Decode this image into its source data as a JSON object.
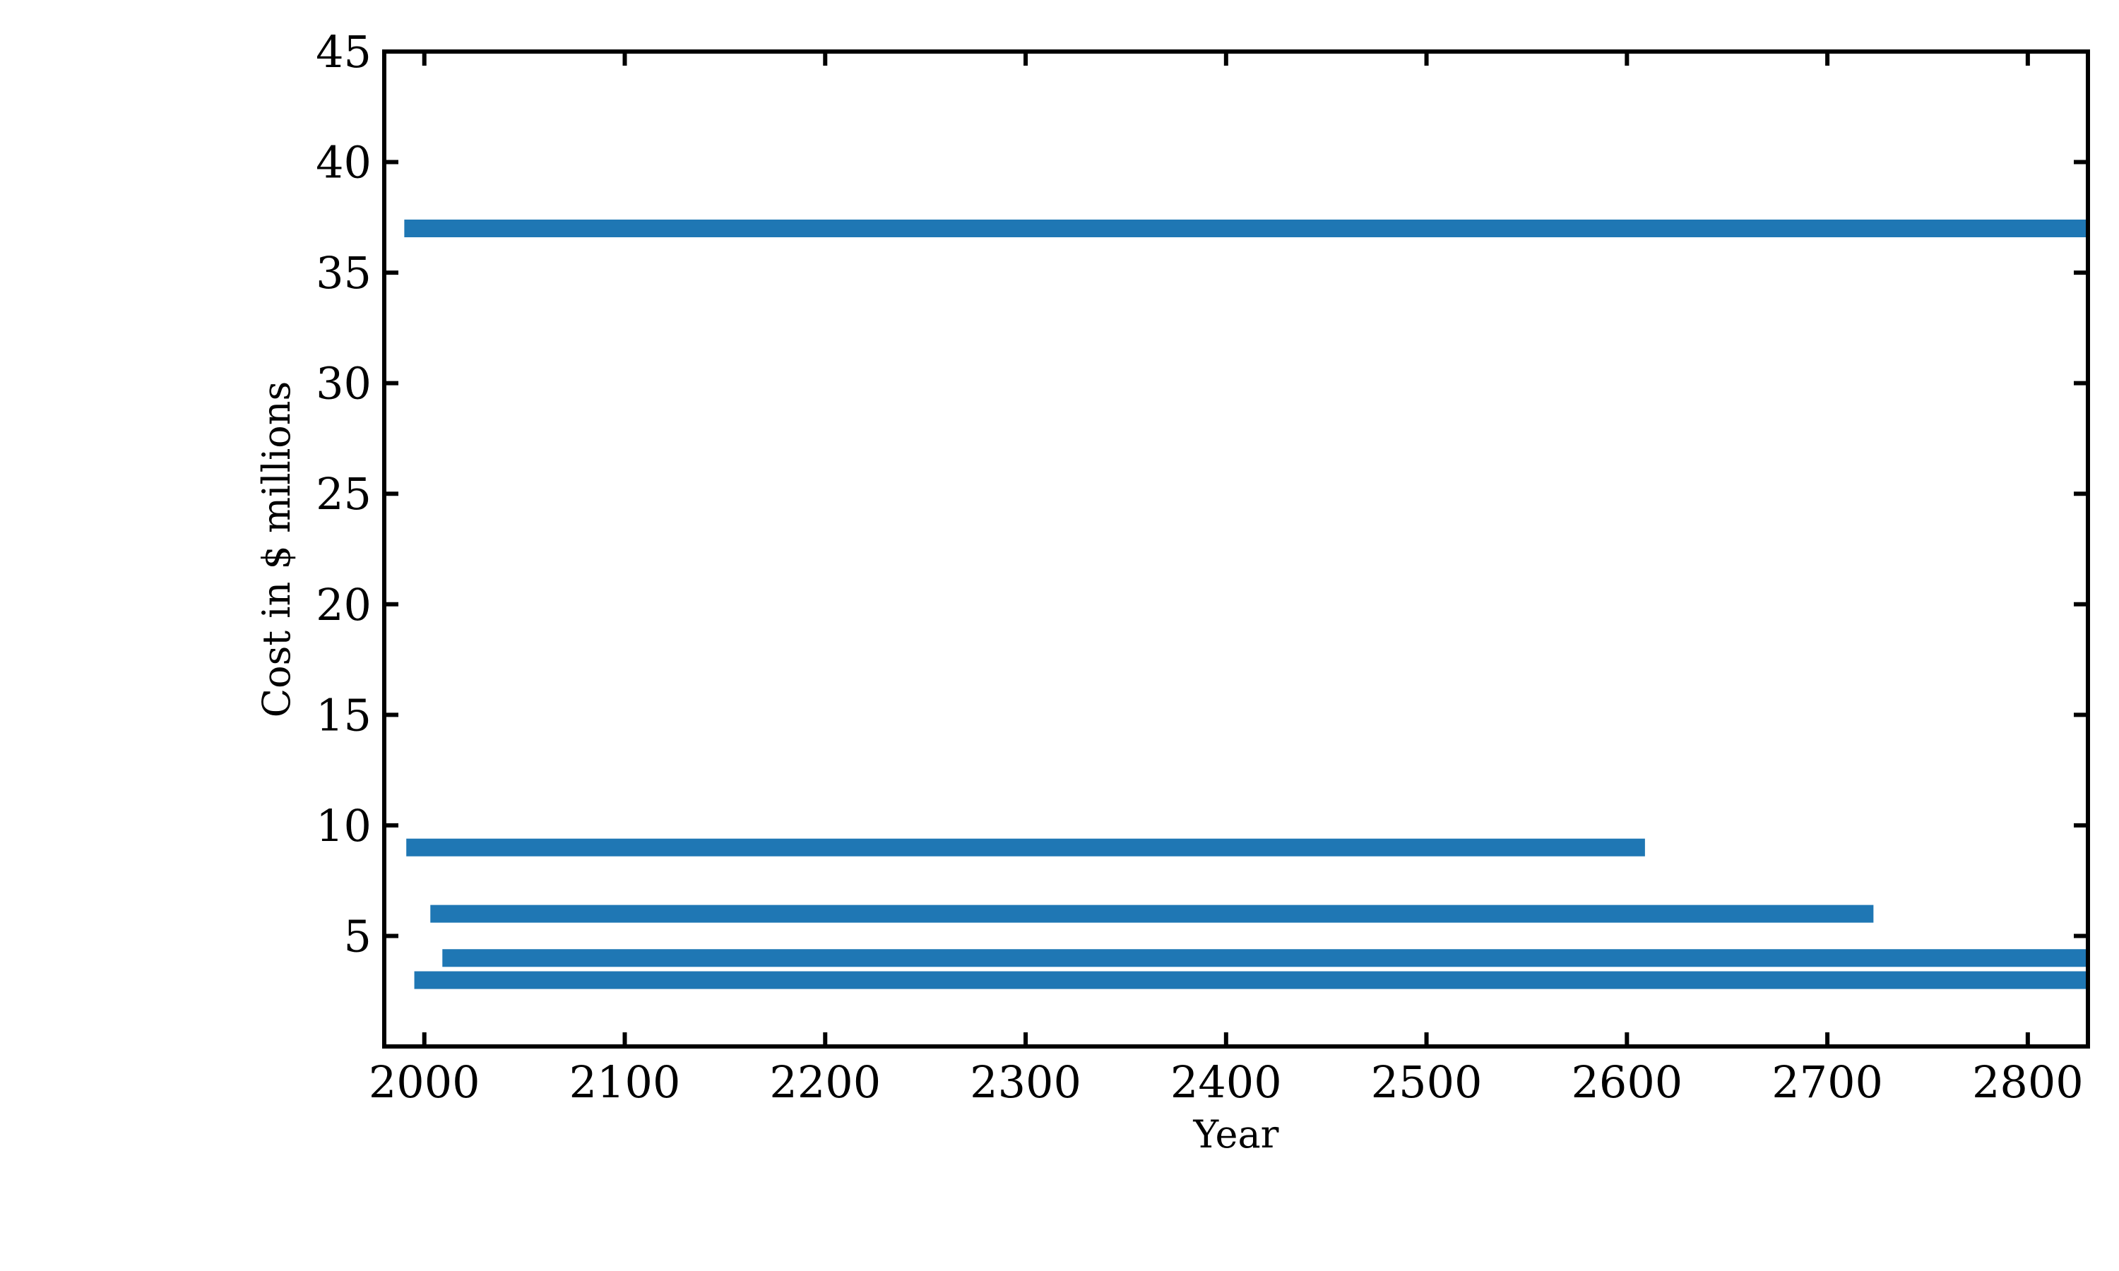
{
  "chart_data": {
    "type": "bar",
    "orientation": "horizontal",
    "title": "",
    "xlabel": "Year",
    "ylabel": "Cost in $ millions",
    "xlim": [
      1980,
      2830
    ],
    "ylim": [
      0,
      45
    ],
    "x_ticks": [
      2000,
      2100,
      2200,
      2300,
      2400,
      2500,
      2600,
      2700,
      2800
    ],
    "y_ticks": [
      5,
      10,
      15,
      20,
      25,
      30,
      35,
      40,
      45
    ],
    "grid": false,
    "legend": "none",
    "bar_color": "#1f77b4",
    "bar_thickness": 0.8,
    "bars": [
      {
        "y": 37,
        "x_start": 1990,
        "x_end": 2830
      },
      {
        "y": 9,
        "x_start": 1991,
        "x_end": 2609
      },
      {
        "y": 6,
        "x_start": 2003,
        "x_end": 2723
      },
      {
        "y": 4,
        "x_start": 2009,
        "x_end": 2830
      },
      {
        "y": 3,
        "x_start": 1995,
        "x_end": 2830
      }
    ]
  }
}
